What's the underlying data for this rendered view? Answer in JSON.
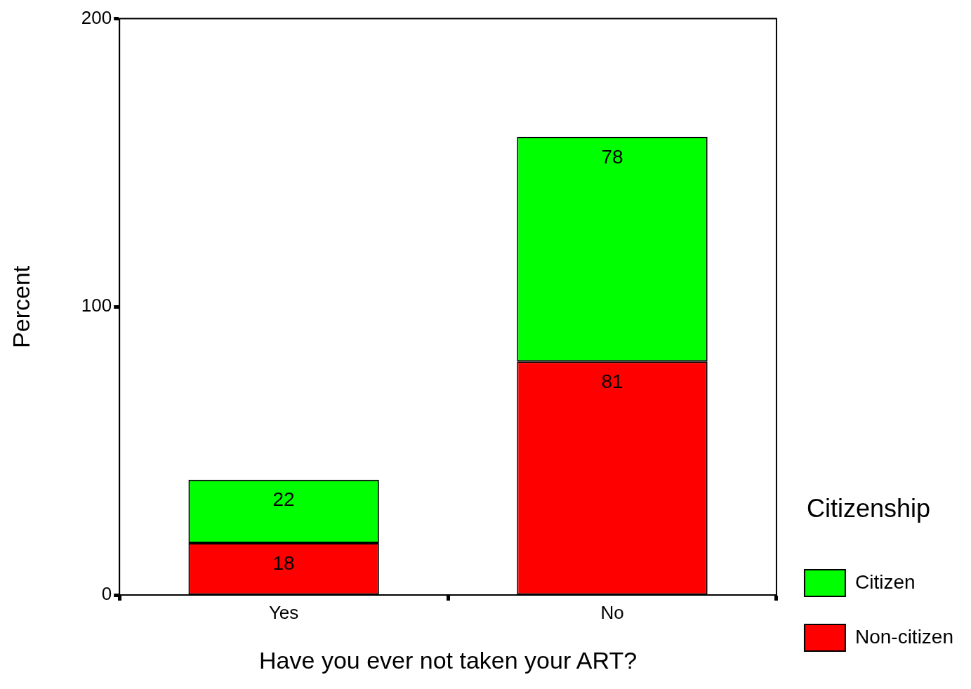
{
  "chart_data": {
    "type": "bar",
    "xlabel": "Have you ever not taken your ART?",
    "ylabel": "Percent",
    "legend_title": "Citizenship",
    "categories": [
      "Yes",
      "No"
    ],
    "stacked": true,
    "ylim": [
      0,
      200
    ],
    "yticks": [
      0,
      100,
      200
    ],
    "data_labels": true,
    "legend": "right",
    "series": [
      {
        "name": "Non-citizen",
        "color": "#ff0000",
        "values": [
          18,
          81
        ]
      },
      {
        "name": "Citizen",
        "color": "#00ff00",
        "values": [
          22,
          78
        ]
      }
    ]
  }
}
